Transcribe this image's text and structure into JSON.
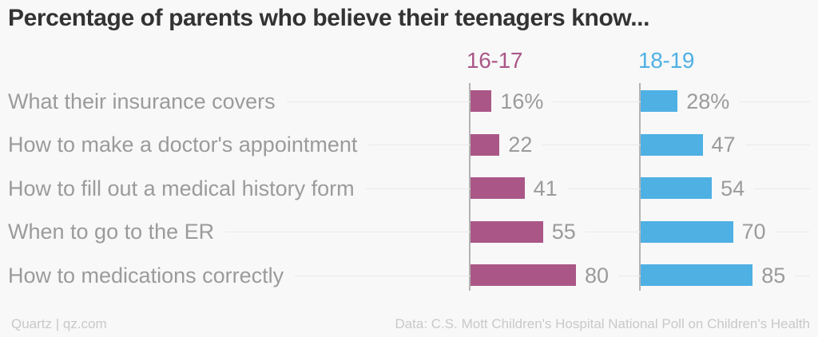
{
  "title": "Percentage of parents who believe their teenagers know...",
  "chart_data": {
    "type": "bar",
    "orientation": "horizontal",
    "title": "Percentage of parents who believe their teenagers know...",
    "categories": [
      "What their insurance covers",
      "How to make a doctor's appointment",
      "How to fill out a medical history form",
      "When to go to the ER",
      "How to medications correctly"
    ],
    "series": [
      {
        "name": "16-17",
        "color": "#aa5787",
        "values": [
          16,
          22,
          41,
          55,
          80
        ],
        "value_labels": [
          "16%",
          "22",
          "41",
          "55",
          "80"
        ]
      },
      {
        "name": "18-19",
        "color": "#4fb0e4",
        "values": [
          28,
          47,
          54,
          70,
          85
        ],
        "value_labels": [
          "28%",
          "47",
          "54",
          "70",
          "85"
        ]
      }
    ],
    "xlim": [
      0,
      100
    ],
    "grid": "row-center-lines",
    "legend_position": "column-headers-above-each-group"
  },
  "footer": {
    "left": "Quartz | qz.com",
    "right": "Data: C.S. Mott Children's Hospital National Poll on Children's Health"
  },
  "colors": {
    "background": "#f8f8f8",
    "title_text": "#333333",
    "label_text": "#9b9b9b",
    "footer_text": "#c9c9c9",
    "gridline": "#e9e9e9",
    "axis_line": "#b3b3b3",
    "series_16_17": "#aa5787",
    "series_18_19": "#4fb0e4"
  }
}
